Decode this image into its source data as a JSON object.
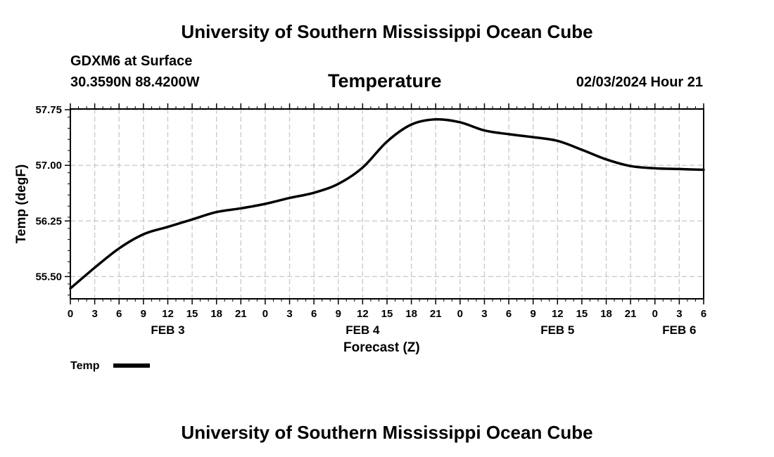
{
  "page": {
    "top_title": "University of Southern Mississippi Ocean Cube",
    "bottom_title": "University of Southern Mississippi Ocean Cube",
    "station_line1": "GDXM6 at Surface",
    "station_line2": "30.3590N  88.4200W",
    "datetime": "02/03/2024 Hour 21"
  },
  "chart_data": {
    "type": "line",
    "title": "Temperature",
    "xlabel": "Forecast (Z)",
    "ylabel": "Temp (degF)",
    "x_range": [
      0,
      78
    ],
    "ylim": [
      55.2,
      57.76
    ],
    "grid": true,
    "legend_position": "bottom-left",
    "x_tick_labels": [
      "0",
      "3",
      "6",
      "9",
      "12",
      "15",
      "18",
      "21",
      "0",
      "3",
      "6",
      "9",
      "12",
      "15",
      "18",
      "21",
      "0",
      "3",
      "6",
      "9",
      "12",
      "15",
      "18",
      "21",
      "0",
      "3",
      "6"
    ],
    "y_ticks": [
      55.5,
      56.25,
      57.0,
      57.75
    ],
    "y_tick_labels": [
      "55.50",
      "56.25",
      "57.00",
      "57.75"
    ],
    "day_labels": [
      {
        "label": "FEB 3",
        "x": 12
      },
      {
        "label": "FEB 4",
        "x": 36
      },
      {
        "label": "FEB 5",
        "x": 60
      },
      {
        "label": "FEB 6",
        "x": 75
      }
    ],
    "series": [
      {
        "name": "Temp",
        "color": "#000000",
        "x": [
          0,
          3,
          6,
          9,
          12,
          15,
          18,
          21,
          24,
          27,
          30,
          33,
          36,
          39,
          42,
          45,
          48,
          51,
          54,
          57,
          60,
          63,
          66,
          69,
          72,
          75,
          78
        ],
        "values": [
          55.34,
          55.62,
          55.88,
          56.07,
          56.17,
          56.27,
          56.37,
          56.42,
          56.48,
          56.56,
          56.63,
          56.75,
          56.97,
          57.32,
          57.55,
          57.62,
          57.58,
          57.47,
          57.42,
          57.38,
          57.33,
          57.21,
          57.08,
          56.99,
          56.96,
          56.95,
          56.94
        ]
      }
    ]
  }
}
